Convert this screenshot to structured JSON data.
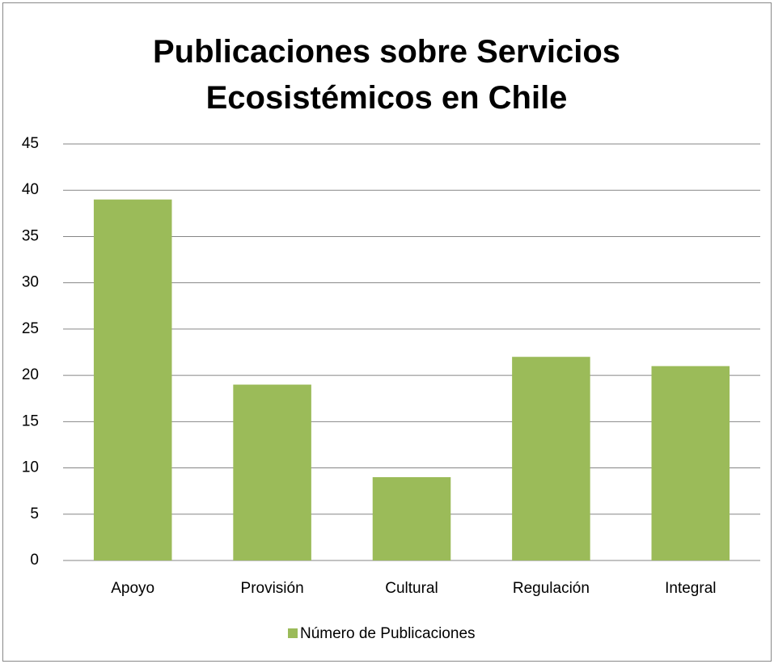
{
  "chart_data": {
    "type": "bar",
    "title": "Publicaciones sobre Servicios Ecosistémicos en Chile",
    "categories": [
      "Apoyo",
      "Provisión",
      "Cultural",
      "Regulación",
      "Integral"
    ],
    "series": [
      {
        "name": "Número de Publicaciones",
        "color": "#9bbb59",
        "values": [
          39,
          19,
          9,
          22,
          21
        ]
      }
    ],
    "ylim": [
      0,
      45
    ],
    "yticks": [
      0,
      5,
      10,
      15,
      20,
      25,
      30,
      35,
      40,
      45
    ],
    "grid": true,
    "legend": "bottom"
  }
}
